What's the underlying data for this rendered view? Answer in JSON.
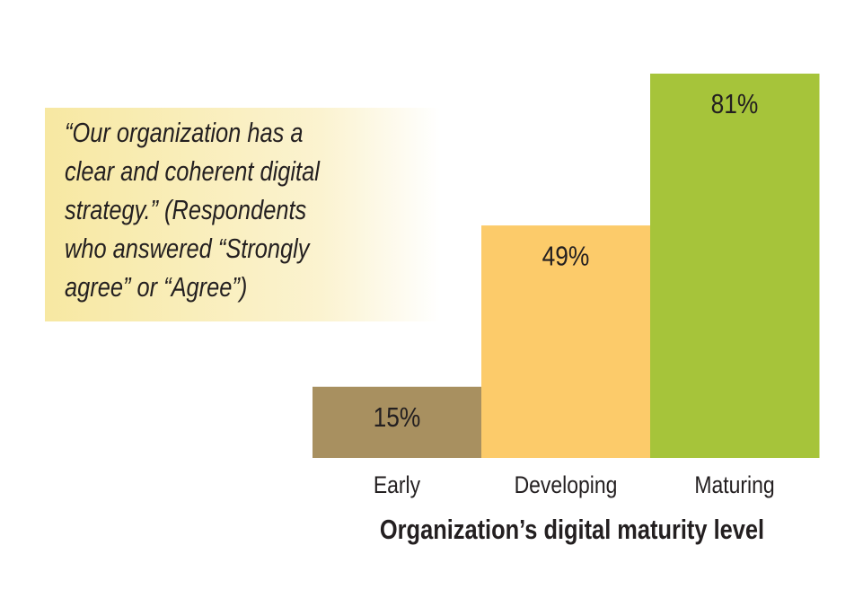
{
  "chart_data": {
    "type": "bar",
    "annotation": [
      "“Our organization has a",
      "clear and coherent digital",
      "strategy.” (Respondents",
      "who answered “Strongly",
      "agree” or “Agree”)"
    ],
    "xlabel": "Organization’s digital maturity level",
    "categories": [
      "Early",
      "Developing",
      "Maturing"
    ],
    "values": [
      15,
      49,
      81
    ],
    "value_labels": [
      "15%",
      "49%",
      "81%"
    ],
    "colors": [
      "#a89060",
      "#fccb6a",
      "#a6c43a"
    ]
  }
}
